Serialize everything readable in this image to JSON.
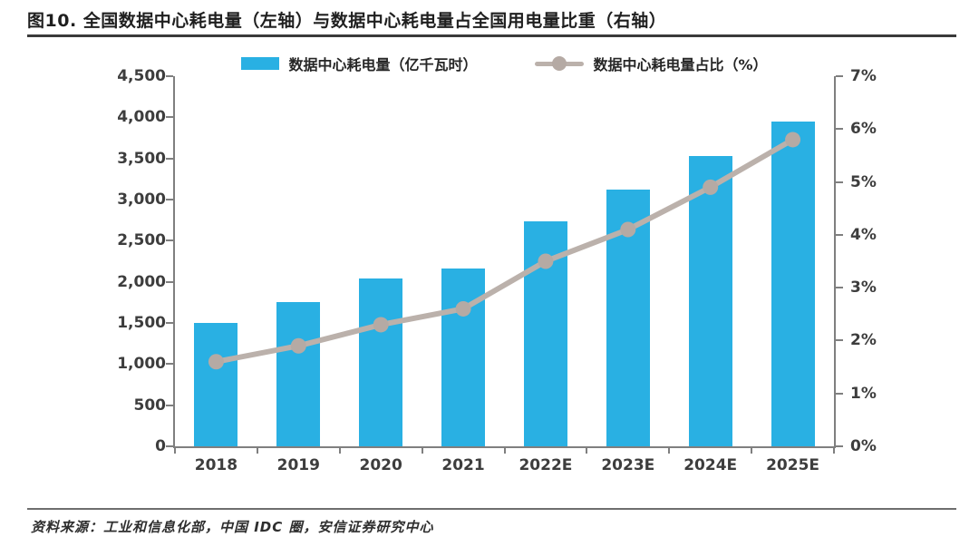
{
  "title": "图10. 全国数据中心耗电量（左轴）与数据中心耗电量占全国用电量比重（右轴）",
  "source": "资料来源：工业和信息化部，中国 IDC 圈，安信证券研究中心",
  "legend": [
    {
      "label": "数据中心耗电量（亿千瓦时）",
      "swatch": "bar-swatch-icon"
    },
    {
      "label": "数据中心耗电量占比（%）",
      "swatch": "line-marker-swatch-icon"
    }
  ],
  "colors": {
    "bar": "#29B0E3",
    "line": "#BBB1AB",
    "marker": "#B5AAA4",
    "axis": "#7F7F7F",
    "tick_text": "#3D3D3D"
  },
  "chart_data": {
    "type": "bar",
    "subtype": "bar+line dual axis",
    "categories": [
      "2018",
      "2019",
      "2020",
      "2021",
      "2022E",
      "2023E",
      "2024E",
      "2025E"
    ],
    "series": [
      {
        "name": "数据中心耗电量（亿千瓦时）",
        "type": "bar",
        "axis": "left",
        "values": [
          1500,
          1750,
          2045,
          2165,
          2740,
          3125,
          3530,
          3950
        ]
      },
      {
        "name": "数据中心耗电量占比（%）",
        "type": "line",
        "axis": "right",
        "values": [
          1.6,
          1.9,
          2.3,
          2.6,
          3.5,
          4.1,
          4.9,
          5.8
        ]
      }
    ],
    "title": "全国数据中心耗电量（左轴）与数据中心耗电量占全国用电量比重（右轴）",
    "xlabel": "",
    "ylabel_left": "亿千瓦时",
    "ylabel_right": "%",
    "left_axis": {
      "min": 0,
      "max": 4500,
      "step": 500
    },
    "right_axis": {
      "min": 0,
      "max": 7,
      "step": 1,
      "suffix": "%"
    },
    "grid": false,
    "legend_position": "top"
  }
}
